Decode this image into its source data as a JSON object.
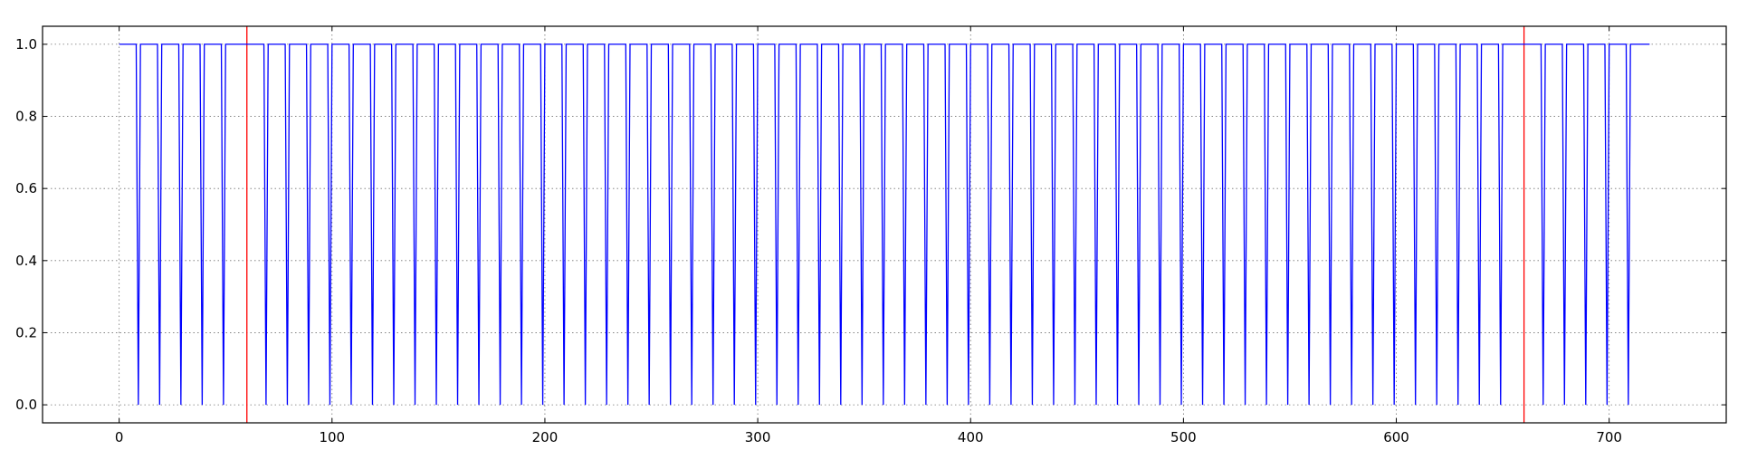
{
  "chart_data": {
    "type": "line",
    "title": "",
    "xlabel": "",
    "ylabel": "",
    "xlim": [
      -36,
      755
    ],
    "ylim": [
      -0.05,
      1.05
    ],
    "grid": true,
    "x_ticks": [
      0,
      100,
      200,
      300,
      400,
      500,
      600,
      700
    ],
    "x_tick_labels": [
      "0",
      "100",
      "200",
      "300",
      "400",
      "500",
      "600",
      "700"
    ],
    "y_ticks": [
      0.0,
      0.2,
      0.4,
      0.6,
      0.8,
      1.0
    ],
    "y_tick_labels": [
      "0.0",
      "0.2",
      "0.4",
      "0.6",
      "0.8",
      "1.0"
    ],
    "series": [
      {
        "color": "#0000ff",
        "pattern": "value 1.0 from x=0 to x=719, dropping to 0.0 for one sample at each listed x",
        "x_start": 0,
        "x_end": 719,
        "high_value": 1.0,
        "low_value": 0.0,
        "drop_points": [
          9,
          19,
          29,
          39,
          49,
          69,
          79,
          89,
          99,
          109,
          119,
          129,
          139,
          149,
          159,
          169,
          179,
          189,
          199,
          209,
          219,
          229,
          239,
          249,
          259,
          269,
          279,
          289,
          299,
          309,
          319,
          329,
          339,
          349,
          359,
          369,
          379,
          389,
          399,
          409,
          419,
          429,
          439,
          449,
          459,
          469,
          479,
          489,
          499,
          509,
          519,
          529,
          539,
          549,
          559,
          569,
          579,
          589,
          599,
          609,
          619,
          629,
          639,
          649,
          669,
          679,
          689,
          699,
          709
        ]
      }
    ],
    "vertical_lines": [
      {
        "x": 60,
        "color": "#ff0000"
      },
      {
        "x": 660,
        "color": "#ff0000"
      }
    ]
  }
}
